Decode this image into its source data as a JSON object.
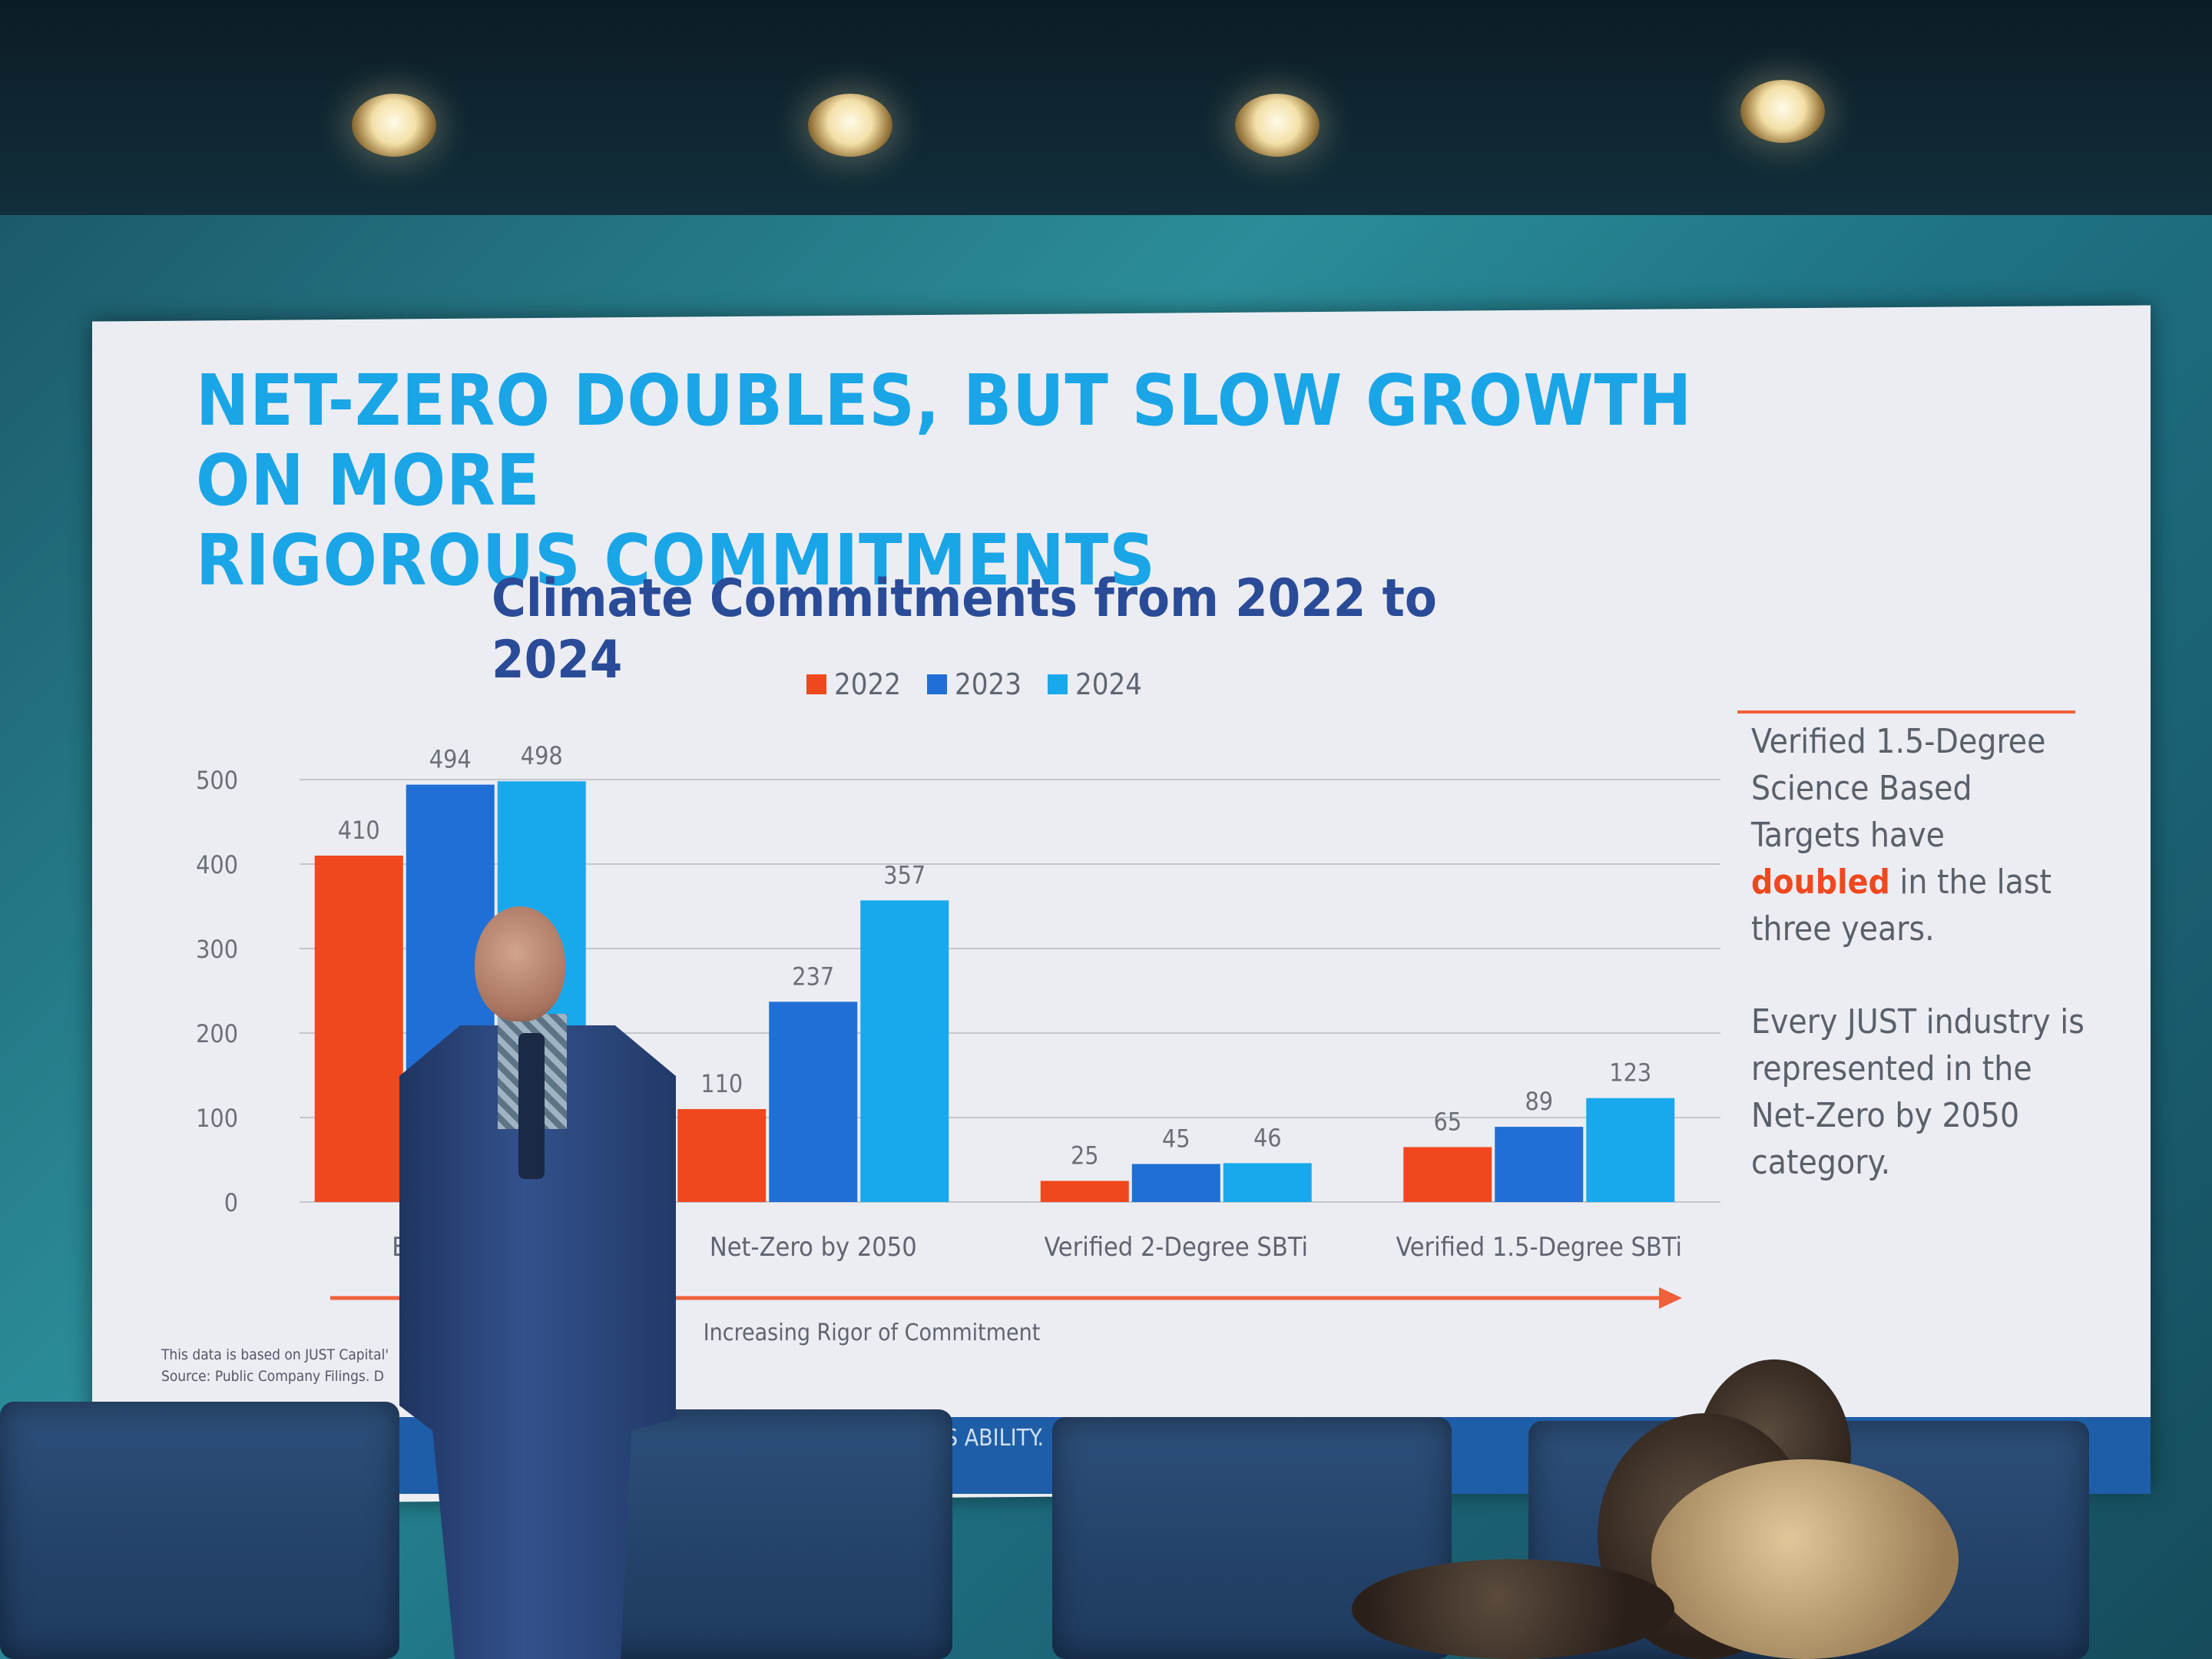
{
  "slide": {
    "title_line1": "NET-ZERO DOUBLES, BUT SLOW GROWTH ON MORE",
    "title_line2": "RIGOROUS COMMITMENTS",
    "footnote_line1": "This data is based on JUST Capital'",
    "footnote_line2": "Source: Public Company Filings. D",
    "footer_text": "S                                                    ABILITY."
  },
  "sidebar": {
    "para1_before": "Verified 1.5-Degree Science Based Targets have ",
    "para1_highlight": "doubled",
    "para1_after": " in the last three years.",
    "para2": "Every JUST industry is represented in the Net-Zero by 2050 category."
  },
  "chart_data": {
    "type": "bar",
    "title": "Climate Commitments from 2022 to 2024",
    "categories": [
      "Emissions",
      "Net-Zero by 2050",
      "Verified 2-Degree SBTi",
      "Verified 1.5-Degree SBTi"
    ],
    "series": [
      {
        "name": "2022",
        "color": "#f0481e",
        "values": [
          410,
          110,
          25,
          65
        ]
      },
      {
        "name": "2023",
        "color": "#1f6fd6",
        "values": [
          494,
          237,
          45,
          89
        ]
      },
      {
        "name": "2024",
        "color": "#18a9ec",
        "values": [
          498,
          357,
          46,
          123
        ]
      }
    ],
    "ylim": [
      0,
      500
    ],
    "yticks": [
      0,
      100,
      200,
      300,
      400,
      500
    ],
    "grid": true,
    "legend_position": "top",
    "data_labels": true,
    "arrow_label": "Increasing Rigor of Commitment",
    "arrow_color": "#f0603a"
  }
}
